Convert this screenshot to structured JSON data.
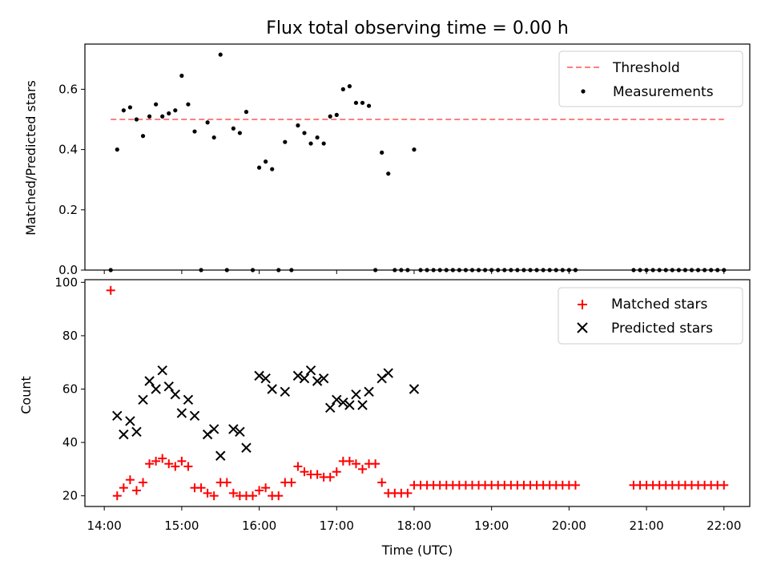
{
  "chart_data": [
    {
      "type": "scatter",
      "title": "Flux total observing time = 0.00 h",
      "xlabel": "",
      "ylabel": "Matched/Predicted stars",
      "xlim": [
        "13:45",
        "22:20"
      ],
      "ylim": [
        0,
        0.75
      ],
      "y_ticks": [
        0.0,
        0.2,
        0.4,
        0.6
      ],
      "y_tick_labels": [
        "0.0",
        "0.2",
        "0.4",
        "0.6"
      ],
      "grid": false,
      "legend": "top-right",
      "threshold": {
        "name": "Threshold",
        "value": 0.5,
        "x_start": "14:05",
        "x_end": "22:00",
        "color": "#ff7f7f",
        "style": "dashed"
      },
      "series": [
        {
          "name": "Measurements",
          "color": "#000000",
          "marker": "dot",
          "points": [
            [
              "14:05",
              0.0
            ],
            [
              "14:10",
              0.4
            ],
            [
              "14:15",
              0.53
            ],
            [
              "14:20",
              0.54
            ],
            [
              "14:25",
              0.5
            ],
            [
              "14:30",
              0.445
            ],
            [
              "14:35",
              0.51
            ],
            [
              "14:40",
              0.55
            ],
            [
              "14:45",
              0.51
            ],
            [
              "14:50",
              0.52
            ],
            [
              "14:55",
              0.53
            ],
            [
              "15:00",
              0.645
            ],
            [
              "15:05",
              0.55
            ],
            [
              "15:10",
              0.46
            ],
            [
              "15:15",
              0.0
            ],
            [
              "15:20",
              0.49
            ],
            [
              "15:25",
              0.44
            ],
            [
              "15:30",
              0.715
            ],
            [
              "15:35",
              0.0
            ],
            [
              "15:40",
              0.47
            ],
            [
              "15:45",
              0.455
            ],
            [
              "15:50",
              0.525
            ],
            [
              "15:55",
              0.0
            ],
            [
              "16:00",
              0.34
            ],
            [
              "16:05",
              0.36
            ],
            [
              "16:10",
              0.335
            ],
            [
              "16:15",
              0.0
            ],
            [
              "16:20",
              0.425
            ],
            [
              "16:25",
              0.0
            ],
            [
              "16:30",
              0.48
            ],
            [
              "16:35",
              0.455
            ],
            [
              "16:40",
              0.42
            ],
            [
              "16:45",
              0.44
            ],
            [
              "16:50",
              0.42
            ],
            [
              "16:55",
              0.51
            ],
            [
              "17:00",
              0.515
            ],
            [
              "17:05",
              0.6
            ],
            [
              "17:10",
              0.61
            ],
            [
              "17:15",
              0.555
            ],
            [
              "17:20",
              0.555
            ],
            [
              "17:25",
              0.545
            ],
            [
              "17:30",
              0.0
            ],
            [
              "17:35",
              0.39
            ],
            [
              "17:40",
              0.32
            ],
            [
              "17:45",
              0.0
            ],
            [
              "17:50",
              0.0
            ],
            [
              "17:55",
              0.0
            ],
            [
              "18:00",
              0.4
            ],
            [
              "18:05",
              0.0
            ],
            [
              "18:10",
              0.0
            ],
            [
              "18:15",
              0.0
            ],
            [
              "18:20",
              0.0
            ],
            [
              "18:25",
              0.0
            ],
            [
              "18:30",
              0.0
            ],
            [
              "18:35",
              0.0
            ],
            [
              "18:40",
              0.0
            ],
            [
              "18:45",
              0.0
            ],
            [
              "18:50",
              0.0
            ],
            [
              "18:55",
              0.0
            ],
            [
              "19:00",
              0.0
            ],
            [
              "19:05",
              0.0
            ],
            [
              "19:10",
              0.0
            ],
            [
              "19:15",
              0.0
            ],
            [
              "19:20",
              0.0
            ],
            [
              "19:25",
              0.0
            ],
            [
              "19:30",
              0.0
            ],
            [
              "19:35",
              0.0
            ],
            [
              "19:40",
              0.0
            ],
            [
              "19:45",
              0.0
            ],
            [
              "19:50",
              0.0
            ],
            [
              "19:55",
              0.0
            ],
            [
              "20:00",
              0.0
            ],
            [
              "20:05",
              0.0
            ],
            [
              "20:50",
              0.0
            ],
            [
              "20:55",
              0.0
            ],
            [
              "21:00",
              0.0
            ],
            [
              "21:05",
              0.0
            ],
            [
              "21:10",
              0.0
            ],
            [
              "21:15",
              0.0
            ],
            [
              "21:20",
              0.0
            ],
            [
              "21:25",
              0.0
            ],
            [
              "21:30",
              0.0
            ],
            [
              "21:35",
              0.0
            ],
            [
              "21:40",
              0.0
            ],
            [
              "21:45",
              0.0
            ],
            [
              "21:50",
              0.0
            ],
            [
              "21:55",
              0.0
            ],
            [
              "22:00",
              0.0
            ]
          ]
        }
      ]
    },
    {
      "type": "scatter",
      "title": "",
      "xlabel": "Time (UTC)",
      "ylabel": "Count",
      "xlim": [
        "13:45",
        "22:20"
      ],
      "ylim": [
        16,
        101
      ],
      "x_ticks": [
        "14:00",
        "15:00",
        "16:00",
        "17:00",
        "18:00",
        "19:00",
        "20:00",
        "21:00",
        "22:00"
      ],
      "y_ticks": [
        20,
        40,
        60,
        80,
        100
      ],
      "grid": false,
      "legend": "top-right",
      "series": [
        {
          "name": "Matched stars",
          "color": "#ff0000",
          "marker": "plus",
          "points": [
            [
              "14:05",
              97
            ],
            [
              "14:10",
              20
            ],
            [
              "14:15",
              23
            ],
            [
              "14:20",
              26
            ],
            [
              "14:25",
              22
            ],
            [
              "14:30",
              25
            ],
            [
              "14:35",
              32
            ],
            [
              "14:40",
              33
            ],
            [
              "14:45",
              34
            ],
            [
              "14:50",
              32
            ],
            [
              "14:55",
              31
            ],
            [
              "15:00",
              33
            ],
            [
              "15:05",
              31
            ],
            [
              "15:10",
              23
            ],
            [
              "15:15",
              23
            ],
            [
              "15:20",
              21
            ],
            [
              "15:25",
              20
            ],
            [
              "15:30",
              25
            ],
            [
              "15:35",
              25
            ],
            [
              "15:40",
              21
            ],
            [
              "15:45",
              20
            ],
            [
              "15:50",
              20
            ],
            [
              "15:55",
              20
            ],
            [
              "16:00",
              22
            ],
            [
              "16:05",
              23
            ],
            [
              "16:10",
              20
            ],
            [
              "16:15",
              20
            ],
            [
              "16:20",
              25
            ],
            [
              "16:25",
              25
            ],
            [
              "16:30",
              31
            ],
            [
              "16:35",
              29
            ],
            [
              "16:40",
              28
            ],
            [
              "16:45",
              28
            ],
            [
              "16:50",
              27
            ],
            [
              "16:55",
              27
            ],
            [
              "17:00",
              29
            ],
            [
              "17:05",
              33
            ],
            [
              "17:10",
              33
            ],
            [
              "17:15",
              32
            ],
            [
              "17:20",
              30
            ],
            [
              "17:25",
              32
            ],
            [
              "17:30",
              32
            ],
            [
              "17:35",
              25
            ],
            [
              "17:40",
              21
            ],
            [
              "17:45",
              21
            ],
            [
              "17:50",
              21
            ],
            [
              "17:55",
              21
            ],
            [
              "18:00",
              24
            ],
            [
              "18:05",
              24
            ],
            [
              "18:10",
              24
            ],
            [
              "18:15",
              24
            ],
            [
              "18:20",
              24
            ],
            [
              "18:25",
              24
            ],
            [
              "18:30",
              24
            ],
            [
              "18:35",
              24
            ],
            [
              "18:40",
              24
            ],
            [
              "18:45",
              24
            ],
            [
              "18:50",
              24
            ],
            [
              "18:55",
              24
            ],
            [
              "19:00",
              24
            ],
            [
              "19:05",
              24
            ],
            [
              "19:10",
              24
            ],
            [
              "19:15",
              24
            ],
            [
              "19:20",
              24
            ],
            [
              "19:25",
              24
            ],
            [
              "19:30",
              24
            ],
            [
              "19:35",
              24
            ],
            [
              "19:40",
              24
            ],
            [
              "19:45",
              24
            ],
            [
              "19:50",
              24
            ],
            [
              "19:55",
              24
            ],
            [
              "20:00",
              24
            ],
            [
              "20:05",
              24
            ],
            [
              "20:50",
              24
            ],
            [
              "20:55",
              24
            ],
            [
              "21:00",
              24
            ],
            [
              "21:05",
              24
            ],
            [
              "21:10",
              24
            ],
            [
              "21:15",
              24
            ],
            [
              "21:20",
              24
            ],
            [
              "21:25",
              24
            ],
            [
              "21:30",
              24
            ],
            [
              "21:35",
              24
            ],
            [
              "21:40",
              24
            ],
            [
              "21:45",
              24
            ],
            [
              "21:50",
              24
            ],
            [
              "21:55",
              24
            ],
            [
              "22:00",
              24
            ]
          ]
        },
        {
          "name": "Predicted stars",
          "color": "#000000",
          "marker": "x",
          "points": [
            [
              "14:10",
              50
            ],
            [
              "14:15",
              43
            ],
            [
              "14:20",
              48
            ],
            [
              "14:25",
              44
            ],
            [
              "14:30",
              56
            ],
            [
              "14:35",
              63
            ],
            [
              "14:40",
              60
            ],
            [
              "14:45",
              67
            ],
            [
              "14:50",
              61
            ],
            [
              "14:55",
              58
            ],
            [
              "15:00",
              51
            ],
            [
              "15:05",
              56
            ],
            [
              "15:10",
              50
            ],
            [
              "15:20",
              43
            ],
            [
              "15:25",
              45
            ],
            [
              "15:30",
              35
            ],
            [
              "15:40",
              45
            ],
            [
              "15:45",
              44
            ],
            [
              "15:50",
              38
            ],
            [
              "16:00",
              65
            ],
            [
              "16:05",
              64
            ],
            [
              "16:10",
              60
            ],
            [
              "16:20",
              59
            ],
            [
              "16:30",
              65
            ],
            [
              "16:35",
              64
            ],
            [
              "16:40",
              67
            ],
            [
              "16:45",
              63
            ],
            [
              "16:50",
              64
            ],
            [
              "16:55",
              53
            ],
            [
              "17:00",
              56
            ],
            [
              "17:05",
              55
            ],
            [
              "17:10",
              54
            ],
            [
              "17:15",
              58
            ],
            [
              "17:20",
              54
            ],
            [
              "17:25",
              59
            ],
            [
              "17:35",
              64
            ],
            [
              "17:40",
              66
            ],
            [
              "18:00",
              60
            ]
          ]
        }
      ]
    }
  ]
}
